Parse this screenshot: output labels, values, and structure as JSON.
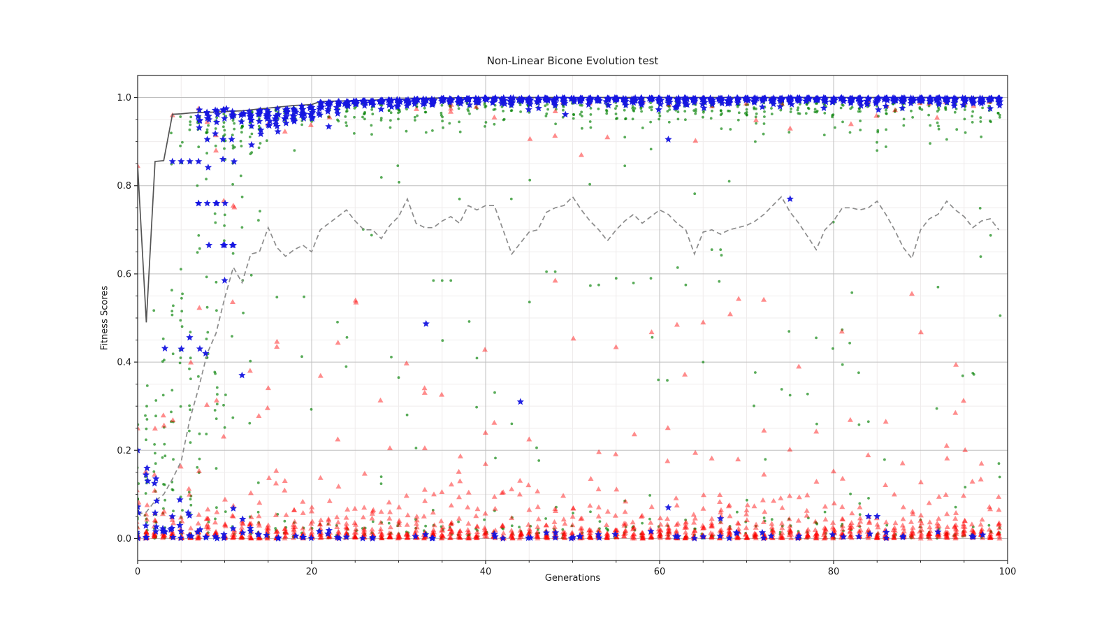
{
  "chart_data": {
    "type": "scatter",
    "title": "Non-Linear Bicone Evolution test",
    "xlabel": "Generations",
    "ylabel": "Fitness Scores",
    "xlim": [
      0,
      100
    ],
    "ylim": [
      -0.05,
      1.05
    ],
    "xticks": {
      "major": [
        0,
        20,
        40,
        60,
        80,
        100
      ],
      "minor_step": 5
    },
    "yticks": {
      "major": [
        0.0,
        0.2,
        0.4,
        0.6,
        0.8,
        1.0
      ],
      "labels": [
        "0.0",
        "0.2",
        "0.4",
        "0.6",
        "0.8",
        "1.0"
      ],
      "minor_step": 0.05
    },
    "grid": {
      "major_color": "#bfbfbf",
      "minor_color": "#efecec",
      "on": true
    },
    "legend": "none",
    "generations": 100,
    "series": [
      {
        "id": "best",
        "name": "best-fitness-line",
        "type": "line",
        "style": "solid",
        "color": "#545454",
        "width": 1.7,
        "values": [
          0.845,
          0.49,
          0.855,
          0.857,
          0.962,
          0.963,
          0.965,
          0.966,
          0.9665,
          0.967,
          0.968,
          0.969,
          0.97,
          0.972,
          0.974,
          0.976,
          0.978,
          0.98,
          0.982,
          0.983,
          0.984,
          0.991,
          0.9915,
          0.992,
          0.9925,
          0.993,
          0.9935,
          0.994,
          0.995,
          0.996,
          0.9965,
          0.997,
          0.9975,
          0.998,
          0.9985,
          0.999,
          0.999,
          0.9995,
          0.9995,
          1,
          1,
          1,
          1,
          1,
          1,
          1,
          1,
          1,
          1,
          1,
          1,
          1,
          1,
          1,
          1,
          1,
          1,
          1,
          1,
          1,
          1,
          1,
          1,
          1,
          1,
          1,
          1,
          1,
          1,
          1,
          1,
          1,
          1,
          1,
          1,
          1,
          1,
          1,
          1,
          1,
          1,
          1,
          1,
          1,
          1,
          1,
          1,
          1,
          1,
          1,
          1,
          1,
          1,
          1,
          1,
          1,
          1,
          1,
          1,
          1
        ]
      },
      {
        "id": "mean",
        "name": "mean-fitness-line",
        "type": "line",
        "style": "dashed",
        "dash": [
          7,
          4.5
        ],
        "color": "#8c8c8c",
        "width": 1.7,
        "values": [
          0.055,
          0.06,
          0.085,
          0.1,
          0.135,
          0.175,
          0.27,
          0.34,
          0.42,
          0.465,
          0.545,
          0.615,
          0.58,
          0.645,
          0.65,
          0.705,
          0.66,
          0.64,
          0.655,
          0.665,
          0.65,
          0.7,
          0.715,
          0.73,
          0.745,
          0.72,
          0.7,
          0.7,
          0.68,
          0.71,
          0.73,
          0.77,
          0.715,
          0.705,
          0.705,
          0.72,
          0.73,
          0.715,
          0.755,
          0.745,
          0.755,
          0.755,
          0.7,
          0.645,
          0.67,
          0.695,
          0.7,
          0.74,
          0.75,
          0.755,
          0.775,
          0.745,
          0.72,
          0.7,
          0.675,
          0.7,
          0.72,
          0.735,
          0.715,
          0.73,
          0.745,
          0.735,
          0.715,
          0.7,
          0.645,
          0.695,
          0.7,
          0.69,
          0.7,
          0.705,
          0.71,
          0.72,
          0.735,
          0.755,
          0.775,
          0.74,
          0.715,
          0.685,
          0.655,
          0.7,
          0.72,
          0.75,
          0.75,
          0.745,
          0.75,
          0.765,
          0.735,
          0.7,
          0.66,
          0.635,
          0.7,
          0.725,
          0.735,
          0.765,
          0.745,
          0.73,
          0.705,
          0.72,
          0.725,
          0.7
        ]
      },
      {
        "id": "green",
        "name": "population-fitness-points",
        "type": "scatter",
        "marker": "dot",
        "color": "#008000",
        "opacity": 0.65,
        "size": 1.9,
        "outliers": [
          [
            28,
            0.14
          ],
          [
            30,
            0.365
          ],
          [
            32,
            0.205
          ],
          [
            34,
            0.585
          ],
          [
            35,
            0.585
          ],
          [
            36,
            0.585
          ],
          [
            37,
            0.77
          ],
          [
            43,
            0.26
          ],
          [
            47,
            0.605
          ],
          [
            48,
            0.605
          ],
          [
            53,
            0.575
          ],
          [
            55,
            0.59
          ],
          [
            56,
            0.91
          ],
          [
            56,
            0.845
          ],
          [
            59,
            0.59
          ],
          [
            63,
            0.575
          ],
          [
            65,
            0.4
          ],
          [
            66,
            0.655
          ],
          [
            67,
            0.655
          ],
          [
            68,
            0.81
          ],
          [
            71,
            0.9
          ],
          [
            78,
            0.455
          ],
          [
            84,
            0.265
          ],
          [
            92,
            0.57
          ],
          [
            93,
            0.905
          ],
          [
            96,
            0.375
          ],
          [
            99,
            0.17
          ]
        ]
      },
      {
        "id": "red",
        "name": "offspring-fitness-points",
        "type": "scatter",
        "marker": "triangle",
        "color": "#ff0000",
        "opacity": 0.45,
        "size": 4,
        "outliers": [
          [
            0,
            0.845
          ],
          [
            0,
            0.25
          ],
          [
            4,
            0.96
          ],
          [
            7,
            0.975
          ],
          [
            8,
            0.945
          ],
          [
            9,
            0.915
          ],
          [
            9,
            0.88
          ],
          [
            11,
            0.755
          ],
          [
            16,
            0.435
          ],
          [
            23,
            0.225
          ],
          [
            29,
            0.205
          ],
          [
            33,
            0.205
          ],
          [
            36,
            0.975
          ],
          [
            41,
            0.955
          ],
          [
            45,
            0.225
          ],
          [
            48,
            0.585
          ],
          [
            51,
            0.87
          ],
          [
            54,
            0.91
          ],
          [
            62,
            0.485
          ],
          [
            65,
            0.49
          ],
          [
            72,
            0.245
          ],
          [
            75,
            0.93
          ],
          [
            76,
            0.39
          ],
          [
            82,
            0.94
          ],
          [
            86,
            0.265
          ],
          [
            89,
            0.555
          ],
          [
            94,
            0.285
          ],
          [
            97,
            0.17
          ],
          [
            99,
            0.065
          ]
        ]
      },
      {
        "id": "blue",
        "name": "elite-fitness-points",
        "type": "scatter",
        "marker": "star",
        "color": "#1515e0",
        "opacity": 0.95,
        "size": 5.4,
        "outliers": [
          [
            0,
            0.2
          ],
          [
            4,
            0.855
          ],
          [
            5,
            0.855
          ],
          [
            6,
            0.855
          ],
          [
            7,
            0.855
          ],
          [
            7,
            0.76
          ],
          [
            8,
            0.76
          ],
          [
            9,
            0.76
          ],
          [
            8,
            0.905
          ],
          [
            10,
            0.665
          ],
          [
            11,
            0.665
          ],
          [
            10,
            0.585
          ],
          [
            12,
            0.37
          ],
          [
            44,
            0.31
          ],
          [
            61,
            0.905
          ],
          [
            61,
            0.07
          ],
          [
            67,
            0.045
          ],
          [
            75,
            0.77
          ],
          [
            84,
            0.05
          ],
          [
            85,
            0.05
          ],
          [
            88,
            0.005
          ],
          [
            98,
            0.975
          ]
        ]
      }
    ],
    "scatter_model": {
      "seed": 1337,
      "x_jitter": {
        "green": 0.16,
        "red": 0.12,
        "blue": 0.2
      },
      "green": {
        "early_n": 15,
        "mid_n": 17,
        "top_n": 8,
        "bottom_n": 3,
        "top_decay": 0.02,
        "bottom_decay": 0.018,
        "mid_outlier_p": 0.5
      },
      "red": {
        "base_n": 9,
        "base_decay": 0.013,
        "tail_n": 2,
        "mid_outlier_p": 0.4,
        "high_outlier_p": 0.12,
        "neartop_p": 0.3
      },
      "blue": {
        "cluster_n": 9,
        "bottom_p": 0.55,
        "bottom_decay": 0.007,
        "mid_outlier_p": 0.05
      }
    }
  }
}
